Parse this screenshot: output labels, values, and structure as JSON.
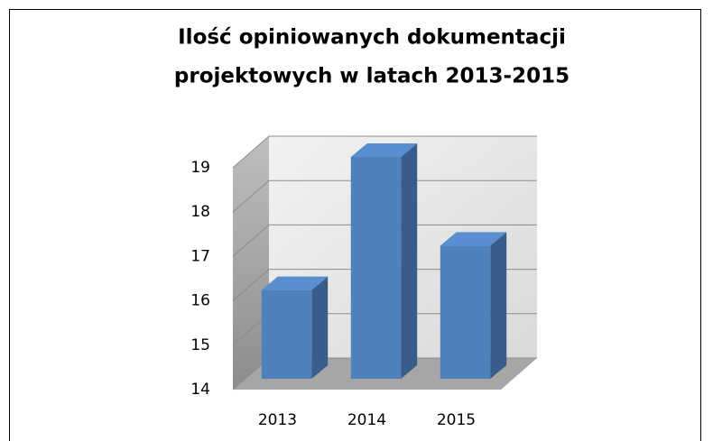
{
  "chart_data": {
    "type": "bar3d",
    "title": [
      "Ilość opiniowanych dokumentacji",
      "projektowych w  latach 2013-2015"
    ],
    "categories": [
      "2013",
      "2014",
      "2015"
    ],
    "values": [
      16,
      19,
      17
    ],
    "color": "#4f81bd",
    "ylim": [
      14,
      19
    ],
    "yticks": [
      14,
      15,
      16,
      17,
      18,
      19
    ],
    "grid": true
  }
}
